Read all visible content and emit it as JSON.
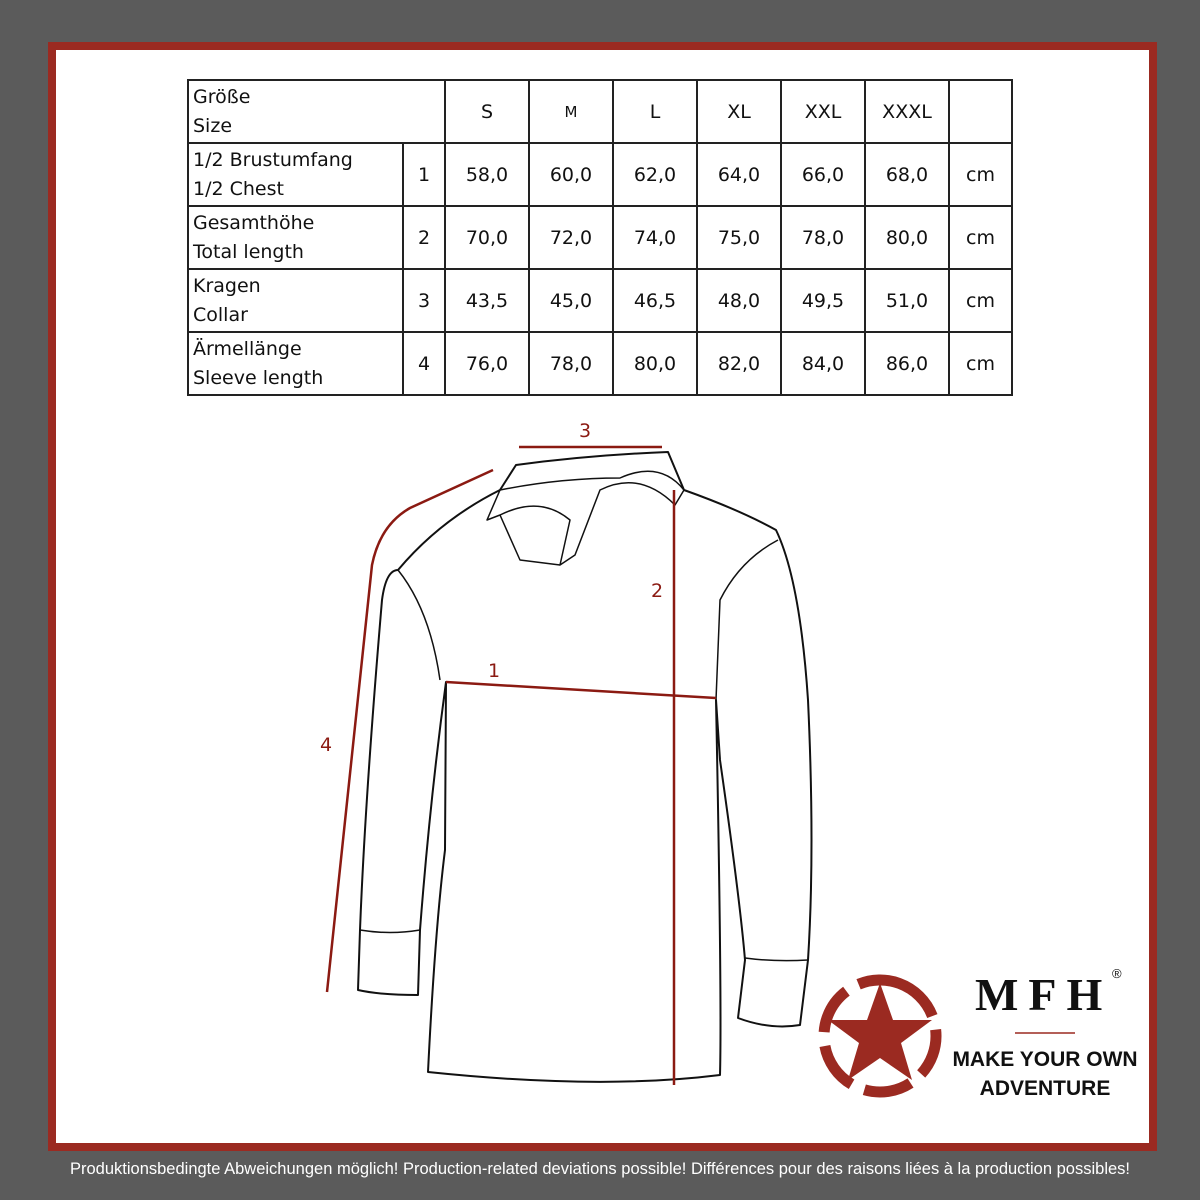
{
  "table": {
    "header": {
      "label_de": "Größe",
      "label_en": "Size",
      "sizes": [
        "S",
        "M",
        "L",
        "XL",
        "XXL",
        "XXXL"
      ]
    },
    "rows": [
      {
        "label_de": "1/2 Brustumfang",
        "label_en": "1/2 Chest",
        "num": "1",
        "values": [
          "58,0",
          "60,0",
          "62,0",
          "64,0",
          "66,0",
          "68,0"
        ],
        "unit": "cm"
      },
      {
        "label_de": "Gesamthöhe",
        "label_en": "Total length",
        "num": "2",
        "values": [
          "70,0",
          "72,0",
          "74,0",
          "75,0",
          "78,0",
          "80,0"
        ],
        "unit": "cm"
      },
      {
        "label_de": "Kragen",
        "label_en": "Collar",
        "num": "3",
        "values": [
          "43,5",
          "45,0",
          "46,5",
          "48,0",
          "49,5",
          "51,0"
        ],
        "unit": "cm"
      },
      {
        "label_de": "Ärmellänge",
        "label_en": "Sleeve length",
        "num": "4",
        "values": [
          "76,0",
          "78,0",
          "80,0",
          "82,0",
          "84,0",
          "86,0"
        ],
        "unit": "cm"
      }
    ]
  },
  "diagram": {
    "labels": [
      "1",
      "2",
      "3",
      "4"
    ],
    "measure_color": "#8b1a12"
  },
  "logo": {
    "brand": "MFH",
    "registered": "®",
    "slogan_line1": "MAKE YOUR OWN",
    "slogan_line2": "ADVENTURE",
    "color": "#9b2a21"
  },
  "footer": "Produktionsbedingte Abweichungen möglich! Production-related deviations possible! Différences pour des raisons liées à la production possibles!",
  "colors": {
    "background": "#5b5b5b",
    "frame": "#9b2a21"
  }
}
